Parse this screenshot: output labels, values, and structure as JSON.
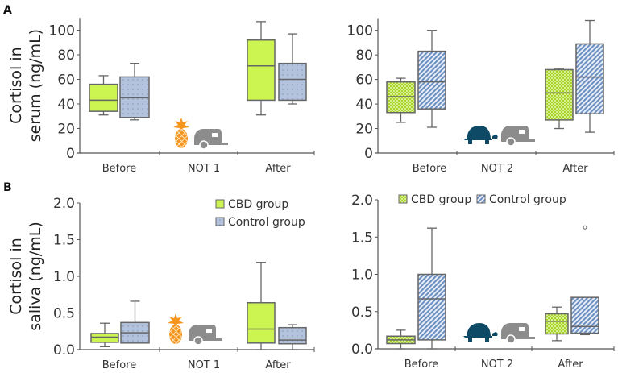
{
  "chart_data": [
    {
      "type": "box",
      "panel": "A",
      "ylabel": [
        "Cortisol in",
        "serum (ng/mL)"
      ],
      "ylim": [
        0,
        110
      ],
      "yticks": [
        "0",
        "20",
        "40",
        "60",
        "80",
        "100"
      ],
      "categories": [
        "Before",
        "NOT 1",
        "After"
      ],
      "icons": [
        "pineapple-icon",
        "trailer-icon"
      ],
      "series": [
        {
          "name": "CBD group",
          "color": "#ccf552",
          "pattern": "solid",
          "boxes": [
            {
              "category": "Before",
              "min": 31,
              "q1": 34,
              "median": 43,
              "q3": 56,
              "max": 63
            },
            {
              "category": "After",
              "min": 31,
              "q1": 43,
              "median": 71,
              "q3": 92,
              "max": 107
            }
          ]
        },
        {
          "name": "Control group",
          "color": "#b3c3de",
          "pattern": "dots",
          "boxes": [
            {
              "category": "Before",
              "min": 27,
              "q1": 29,
              "median": 45,
              "q3": 62,
              "max": 73
            },
            {
              "category": "After",
              "min": 40,
              "q1": 43,
              "median": 60,
              "q3": 73,
              "max": 97
            }
          ]
        }
      ]
    },
    {
      "type": "box",
      "panel": "A-right",
      "ylim": [
        0,
        110
      ],
      "yticks": [
        "0",
        "20",
        "40",
        "60",
        "80",
        "100"
      ],
      "categories": [
        "Before",
        "NOT 2",
        "After"
      ],
      "icons": [
        "turtle-icon",
        "trailer-icon"
      ],
      "series": [
        {
          "name": "CBD group",
          "color": "#a8d42c",
          "pattern": "checker",
          "boxes": [
            {
              "category": "Before",
              "min": 25,
              "q1": 33,
              "median": 46,
              "q3": 58,
              "max": 61
            },
            {
              "category": "After",
              "min": 20,
              "q1": 27,
              "median": 49,
              "q3": 68,
              "max": 69
            }
          ]
        },
        {
          "name": "Control group",
          "color": "#6b8fc0",
          "pattern": "hatch",
          "boxes": [
            {
              "category": "Before",
              "min": 21,
              "q1": 36,
              "median": 58,
              "q3": 83,
              "max": 100
            },
            {
              "category": "After",
              "min": 17,
              "q1": 32,
              "median": 62,
              "q3": 89,
              "max": 108
            }
          ]
        }
      ]
    },
    {
      "type": "box",
      "panel": "B",
      "ylabel": [
        "Cortisol in",
        "saliva (ng/mL)"
      ],
      "ylim": [
        0,
        2.0
      ],
      "yticks": [
        "0.0",
        "0.5",
        "1.0",
        "1.5",
        "2.0"
      ],
      "categories": [
        "Before",
        "NOT 1",
        "After"
      ],
      "icons": [
        "pineapple-icon",
        "trailer-icon"
      ],
      "legend": {
        "position": "top-right",
        "entries": [
          "CBD group",
          "Control group"
        ]
      },
      "series": [
        {
          "name": "CBD group",
          "color": "#ccf552",
          "pattern": "solid",
          "boxes": [
            {
              "category": "Before",
              "min": 0.04,
              "q1": 0.1,
              "median": 0.17,
              "q3": 0.22,
              "max": 0.36
            },
            {
              "category": "After",
              "min": 0.0,
              "q1": 0.09,
              "median": 0.28,
              "q3": 0.64,
              "max": 1.19
            }
          ]
        },
        {
          "name": "Control group",
          "color": "#b3c3de",
          "pattern": "dots",
          "boxes": [
            {
              "category": "Before",
              "min": 0.09,
              "q1": 0.09,
              "median": 0.23,
              "q3": 0.37,
              "max": 0.66
            },
            {
              "category": "After",
              "min": 0.0,
              "q1": 0.08,
              "median": 0.13,
              "q3": 0.3,
              "max": 0.34
            }
          ]
        }
      ]
    },
    {
      "type": "box",
      "panel": "B-right",
      "ylim": [
        0,
        2.0
      ],
      "yticks": [
        "0.0",
        "0.5",
        "1.0",
        "1.5",
        "2.0"
      ],
      "categories": [
        "Before",
        "NOT 2",
        "After"
      ],
      "icons": [
        "turtle-icon",
        "trailer-icon"
      ],
      "legend": {
        "position": "top",
        "entries": [
          "CBD group",
          "Control group"
        ]
      },
      "series": [
        {
          "name": "CBD group",
          "color": "#a8d42c",
          "pattern": "checker",
          "boxes": [
            {
              "category": "Before",
              "min": 0.0,
              "q1": 0.07,
              "median": 0.12,
              "q3": 0.17,
              "max": 0.25
            },
            {
              "category": "After",
              "min": 0.11,
              "q1": 0.2,
              "median": 0.37,
              "q3": 0.47,
              "max": 0.56
            }
          ]
        },
        {
          "name": "Control group",
          "color": "#6b8fc0",
          "pattern": "hatch",
          "boxes": [
            {
              "category": "Before",
              "min": 0.0,
              "q1": 0.12,
              "median": 0.67,
              "q3": 1.0,
              "max": 1.62
            },
            {
              "category": "After",
              "min": 0.19,
              "q1": 0.21,
              "median": 0.3,
              "q3": 0.69,
              "max": 0.69,
              "outliers": [
                1.63
              ]
            }
          ]
        }
      ]
    }
  ],
  "colors": {
    "pineapple": "#f7941d",
    "turtle": "#0e4a66",
    "trailer": "#8c8c8c",
    "axis": "#555555"
  }
}
